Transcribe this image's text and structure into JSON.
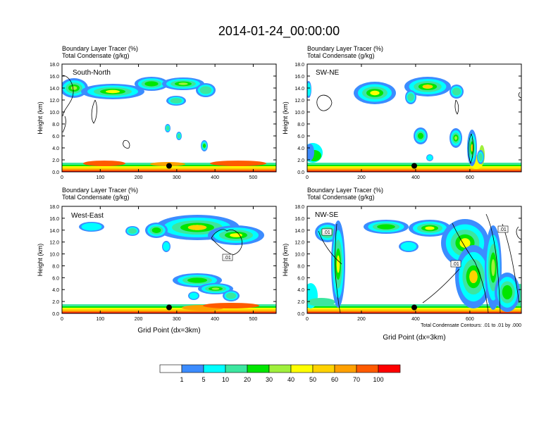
{
  "title": "2014-01-24_00:00:00",
  "panel_subtitle_1": "Boundary Layer Tracer   (%)",
  "panel_subtitle_2": "Total Condensate   (g/kg)",
  "ylabel": "Height (km)",
  "xlabel": "Grid Point (dx=3km)",
  "contour_note": "Total Condensate Contours: .01 to .01 by .000",
  "colors": {
    "levels": [
      "#ffffff",
      "#3c8cff",
      "#00ffff",
      "#3ce6a0",
      "#00e600",
      "#a0f03c",
      "#ffff00",
      "#ffd200",
      "#ffa000",
      "#ff5a00",
      "#ff0000"
    ],
    "contour": "#000000"
  },
  "colorbar_labels": [
    "1",
    "5",
    "10",
    "20",
    "30",
    "40",
    "50",
    "60",
    "70",
    "100"
  ],
  "chart_data": [
    {
      "type": "heatmap",
      "label": "South-North",
      "xlim": [
        0,
        560
      ],
      "ylim": [
        0,
        18
      ],
      "xticks": [
        "0",
        "100",
        "200",
        "300",
        "400",
        "500"
      ],
      "yticks": [
        "0.0",
        "2.0",
        "4.0",
        "6.0",
        "8.0",
        "10.0",
        "12.0",
        "14.0",
        "16.0",
        "18.0"
      ],
      "marker": {
        "x": 280,
        "y": 1.0
      },
      "contour_labels": []
    },
    {
      "type": "heatmap",
      "label": "SW-NE",
      "xlim": [
        0,
        790
      ],
      "ylim": [
        0,
        18
      ],
      "xticks": [
        "0",
        "200",
        "400",
        "600"
      ],
      "yticks": [
        "0.0",
        "2.0",
        "4.0",
        "6.0",
        "8.0",
        "10.0",
        "12.0",
        "14.0",
        "16.0",
        "18.0"
      ],
      "marker": {
        "x": 395,
        "y": 1.0
      },
      "contour_labels": []
    },
    {
      "type": "heatmap",
      "label": "West-East",
      "xlim": [
        0,
        560
      ],
      "ylim": [
        0,
        18
      ],
      "xticks": [
        "0",
        "100",
        "200",
        "300",
        "400",
        "500"
      ],
      "yticks": [
        "0.0",
        "2.0",
        "4.0",
        "6.0",
        "8.0",
        "10.0",
        "12.0",
        "14.0",
        "16.0",
        "18.0"
      ],
      "marker": {
        "x": 280,
        "y": 1.0
      },
      "contour_labels": [
        ".01"
      ]
    },
    {
      "type": "heatmap",
      "label": "NW-SE",
      "xlim": [
        0,
        790
      ],
      "ylim": [
        0,
        18
      ],
      "xticks": [
        "0",
        "200",
        "400",
        "600"
      ],
      "yticks": [
        "0.0",
        "2.0",
        "4.0",
        "6.0",
        "8.0",
        "10.0",
        "12.0",
        "14.0",
        "16.0",
        "18.0"
      ],
      "marker": {
        "x": 395,
        "y": 1.0
      },
      "contour_labels": [
        ".01",
        ".01",
        ".01"
      ]
    }
  ]
}
